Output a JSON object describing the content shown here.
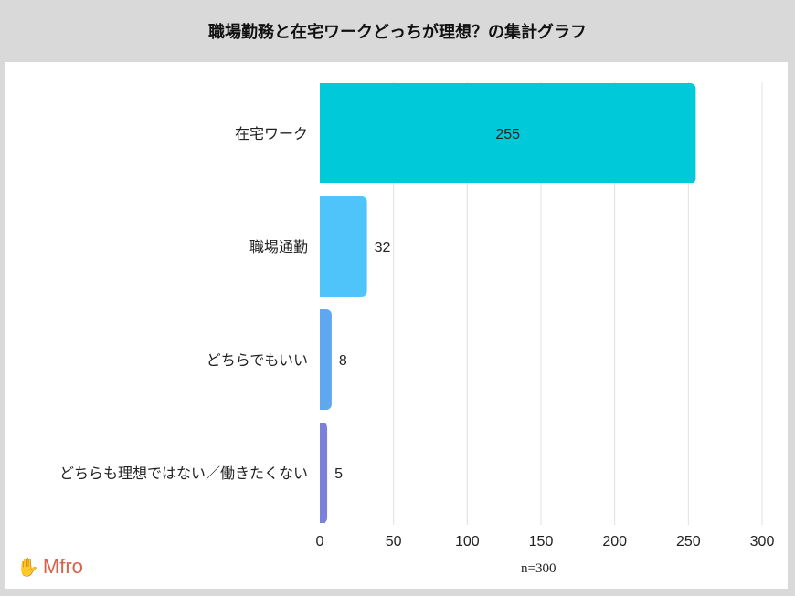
{
  "chart_data": {
    "type": "bar",
    "orientation": "horizontal",
    "title": "職場勤務と在宅ワークどっちが理想？の集計グラフ",
    "categories": [
      "在宅ワーク",
      "職場通勤",
      "どちらでもいい",
      "どちらも理想ではない／働きたくない"
    ],
    "values": [
      255,
      32,
      8,
      5
    ],
    "colors": [
      "#00c9d9",
      "#4ec4fa",
      "#5fa7ef",
      "#7b80d8"
    ],
    "xlim": [
      0,
      300
    ],
    "xticks": [
      0,
      50,
      100,
      150,
      200,
      250,
      300
    ],
    "grid": true,
    "note": "n=300"
  },
  "logo": "Mfro"
}
